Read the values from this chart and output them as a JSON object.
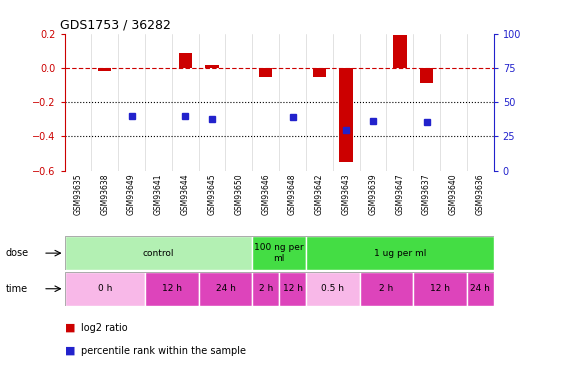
{
  "title": "GDS1753 / 36282",
  "samples": [
    "GSM93635",
    "GSM93638",
    "GSM93649",
    "GSM93641",
    "GSM93644",
    "GSM93645",
    "GSM93650",
    "GSM93646",
    "GSM93648",
    "GSM93642",
    "GSM93643",
    "GSM93639",
    "GSM93647",
    "GSM93637",
    "GSM93640",
    "GSM93636"
  ],
  "log2_ratio": [
    0.0,
    -0.02,
    0.0,
    0.0,
    0.09,
    0.02,
    0.0,
    -0.05,
    0.0,
    -0.05,
    -0.55,
    0.0,
    0.19,
    -0.09,
    0.0,
    0.0
  ],
  "percentile_rank_pct": [
    null,
    null,
    40.0,
    null,
    40.0,
    38.0,
    null,
    null,
    39.0,
    null,
    30.0,
    36.0,
    null,
    35.5,
    null,
    null
  ],
  "ylim": [
    -0.6,
    0.2
  ],
  "y2lim": [
    0,
    100
  ],
  "yticks": [
    0.2,
    0.0,
    -0.2,
    -0.4,
    -0.6
  ],
  "y2ticks": [
    100,
    75,
    50,
    25,
    0
  ],
  "dose_groups": [
    {
      "label": "control",
      "start": 0,
      "end": 6,
      "color": "#b3f0b3"
    },
    {
      "label": "100 ng per\nml",
      "start": 7,
      "end": 8,
      "color": "#44dd44"
    },
    {
      "label": "1 ug per ml",
      "start": 9,
      "end": 15,
      "color": "#44dd44"
    }
  ],
  "time_groups": [
    {
      "label": "0 h",
      "start": 0,
      "end": 2,
      "color": "#f8b8e8"
    },
    {
      "label": "12 h",
      "start": 3,
      "end": 4,
      "color": "#dd44bb"
    },
    {
      "label": "24 h",
      "start": 5,
      "end": 6,
      "color": "#dd44bb"
    },
    {
      "label": "2 h",
      "start": 7,
      "end": 7,
      "color": "#dd44bb"
    },
    {
      "label": "12 h",
      "start": 8,
      "end": 8,
      "color": "#dd44bb"
    },
    {
      "label": "0.5 h",
      "start": 9,
      "end": 10,
      "color": "#f8b8e8"
    },
    {
      "label": "2 h",
      "start": 11,
      "end": 12,
      "color": "#dd44bb"
    },
    {
      "label": "12 h",
      "start": 13,
      "end": 14,
      "color": "#dd44bb"
    },
    {
      "label": "24 h",
      "start": 15,
      "end": 15,
      "color": "#dd44bb"
    }
  ],
  "bar_color": "#cc0000",
  "dot_color": "#2222cc",
  "dash_color": "#cc0000",
  "sample_bg_color": "#d0d0d0",
  "legend_items": [
    {
      "label": "log2 ratio",
      "color": "#cc0000"
    },
    {
      "label": "percentile rank within the sample",
      "color": "#2222cc"
    }
  ],
  "bar_width": 0.5
}
